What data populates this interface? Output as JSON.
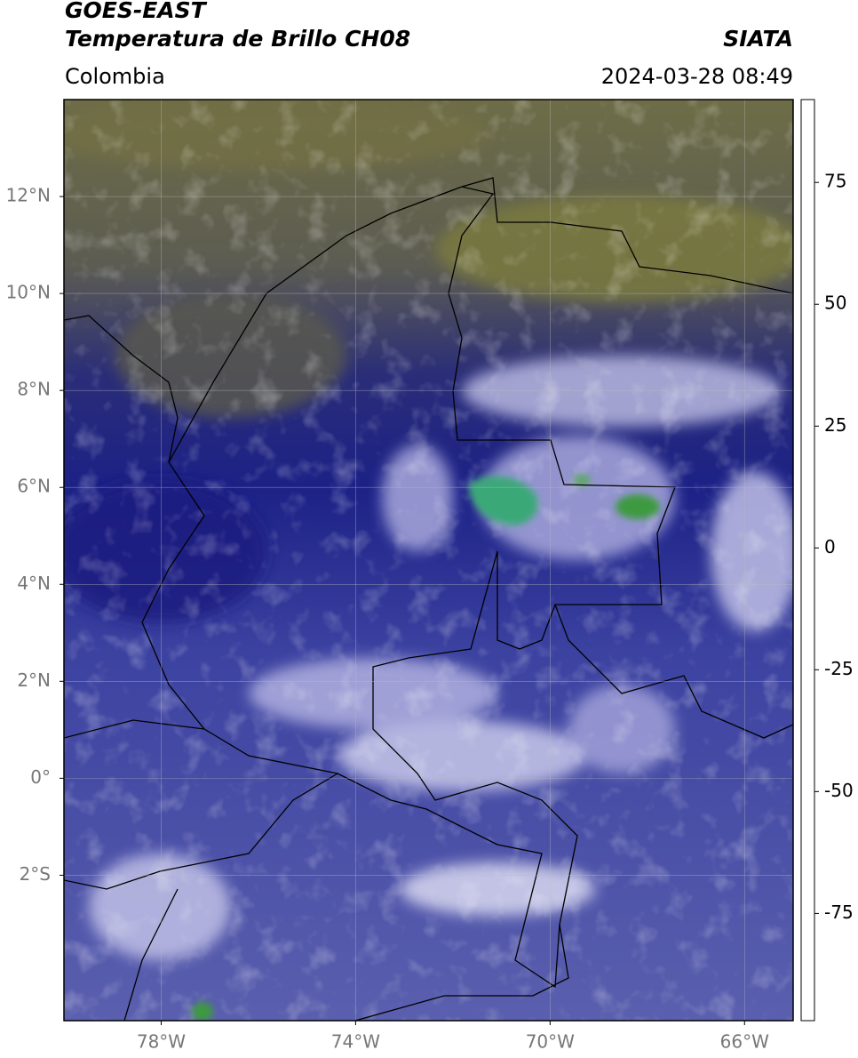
{
  "header": {
    "title": "GOES-EAST",
    "subtitle": "Temperatura de Brillo CH08",
    "source": "SIATA",
    "region": "Colombia",
    "timestamp": "2024-03-28 08:49"
  },
  "map": {
    "xlim": [
      -80,
      -65
    ],
    "ylim": [
      -5,
      14
    ],
    "grid": true,
    "xticks": [
      {
        "value": -78,
        "label": "78°W"
      },
      {
        "value": -74,
        "label": "74°W"
      },
      {
        "value": -70,
        "label": "70°W"
      },
      {
        "value": -66,
        "label": "66°W"
      }
    ],
    "yticks": [
      {
        "value": 12,
        "label": "12°N"
      },
      {
        "value": 10,
        "label": "10°N"
      },
      {
        "value": 8,
        "label": "8°N"
      },
      {
        "value": 6,
        "label": "6°N"
      },
      {
        "value": 4,
        "label": "4°N"
      },
      {
        "value": 2,
        "label": "2°N"
      },
      {
        "value": 0,
        "label": "0°"
      },
      {
        "value": -2,
        "label": "2°S"
      }
    ]
  },
  "colorbar": {
    "clim": [
      -97,
      92
    ],
    "ticks": [
      75,
      50,
      25,
      0,
      -25,
      -50,
      -75
    ],
    "colormap": [
      {
        "value": -97,
        "color": "#ffffff"
      },
      {
        "value": -93,
        "color": "#ffffff"
      },
      {
        "value": -92,
        "color": "#00e8e8"
      },
      {
        "value": -85,
        "color": "#22c0b0"
      },
      {
        "value": -75,
        "color": "#2a9a70"
      },
      {
        "value": -65,
        "color": "#2e8b2e"
      },
      {
        "value": -58,
        "color": "#80b878"
      },
      {
        "value": -52,
        "color": "#ffffff"
      },
      {
        "value": -45,
        "color": "#c8c8e8"
      },
      {
        "value": -35,
        "color": "#6a6ab8"
      },
      {
        "value": -28,
        "color": "#1a1a80"
      },
      {
        "value": -25,
        "color": "#101060"
      },
      {
        "value": -22,
        "color": "#505050"
      },
      {
        "value": -18,
        "color": "#808040"
      },
      {
        "value": -14,
        "color": "#d0d000"
      },
      {
        "value": -10,
        "color": "#ffff00"
      },
      {
        "value": -5,
        "color": "#ff9900"
      },
      {
        "value": 2,
        "color": "#ff4400"
      },
      {
        "value": 8,
        "color": "#ff0000"
      },
      {
        "value": 8,
        "color": "#000000"
      },
      {
        "value": 92,
        "color": "#000000"
      }
    ]
  }
}
